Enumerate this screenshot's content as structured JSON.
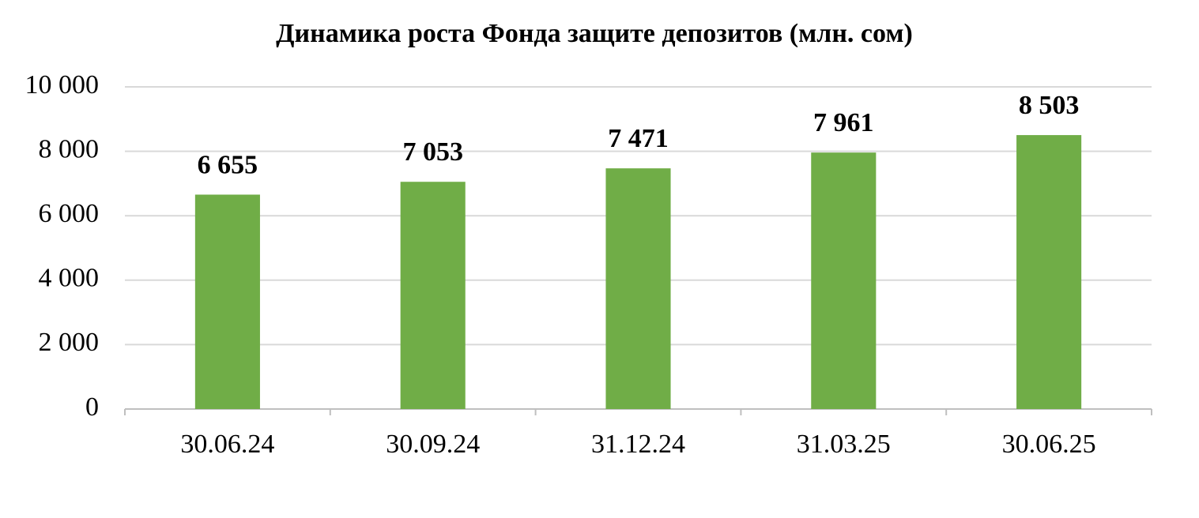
{
  "chart_data": {
    "type": "bar",
    "title": "Динамика роста Фонда защите депозитов (млн. сом)",
    "categories": [
      "30.06.24",
      "30.09.24",
      "31.12.24",
      "31.03.25",
      "30.06.25"
    ],
    "values": [
      6655,
      7053,
      7471,
      7961,
      8503
    ],
    "value_labels": [
      "6 655",
      "7 053",
      "7 471",
      "7 961",
      "8 503"
    ],
    "color": "#70ad47",
    "ylim": [
      0,
      10000
    ],
    "yticks": [
      0,
      {
        "value": 2000,
        "label": "2 000"
      },
      {
        "value": 4000,
        "label": "4 000"
      },
      {
        "value": 6000,
        "label": "6 000"
      },
      {
        "value": 8000,
        "label": "8 000"
      },
      {
        "value": 10000,
        "label": "10 000"
      }
    ],
    "grid": true
  }
}
